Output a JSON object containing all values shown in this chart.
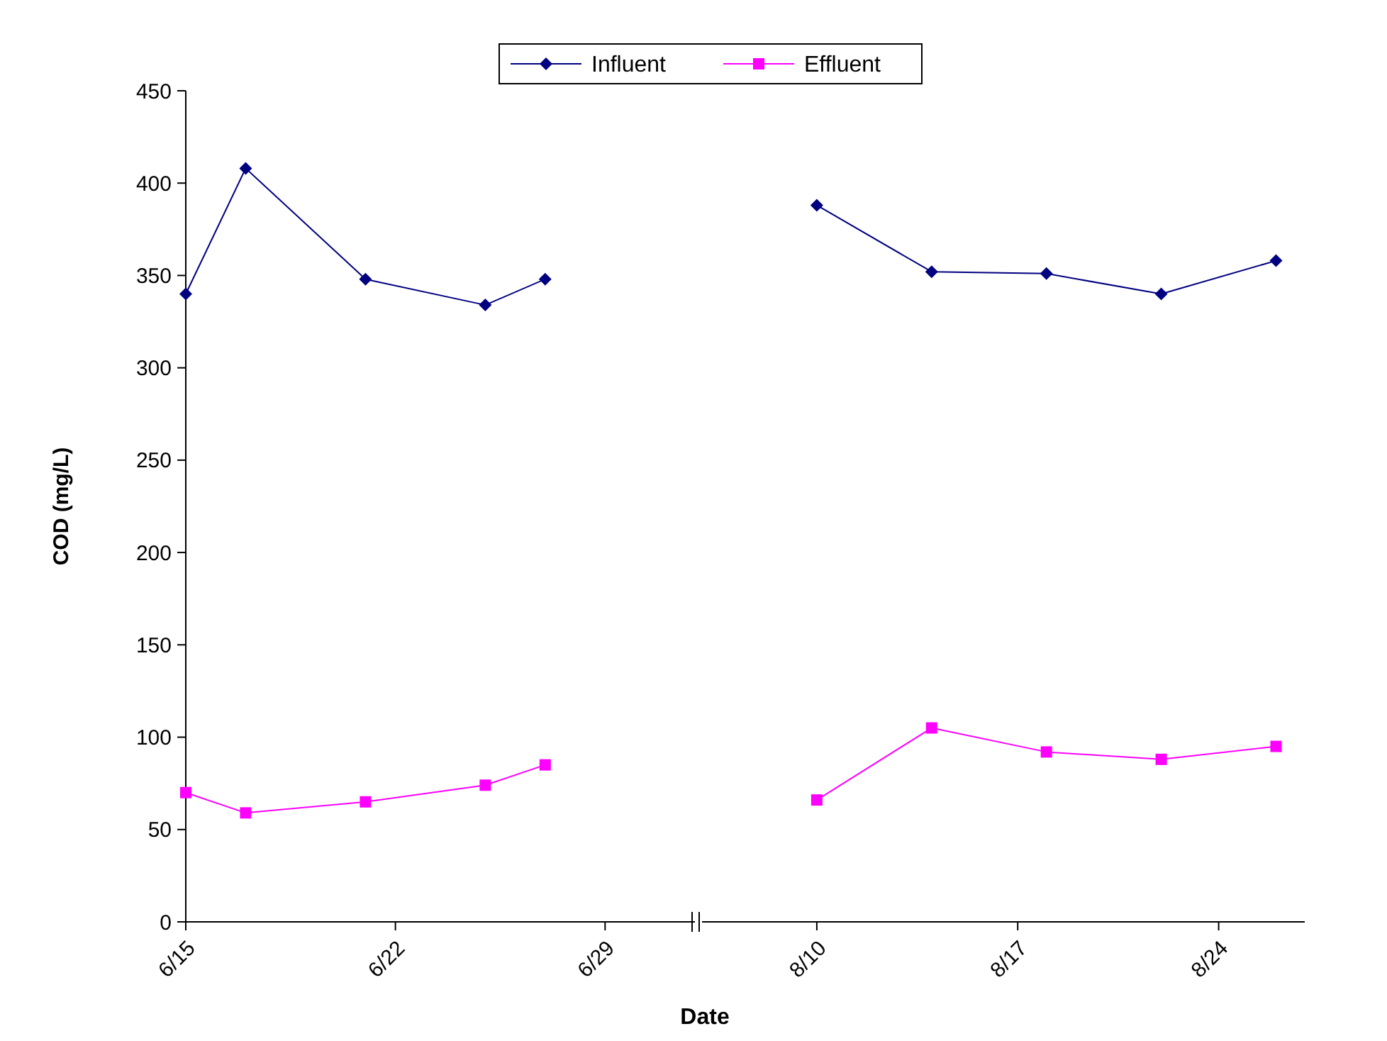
{
  "chart_data": [
    {
      "type": "line",
      "ylabel": "COD (mg/L)",
      "xlabel": "Date",
      "legend": "top",
      "grid": false,
      "xlim": [
        "--06-15",
        "--07-02"
      ],
      "xticks": [
        {
          "value": "--06-15",
          "label": "6/15"
        },
        {
          "value": "--06-22",
          "label": "6/22"
        },
        {
          "value": "--06-29",
          "label": "6/29"
        }
      ],
      "ylim": [
        0,
        450
      ],
      "yticks": [
        0,
        50,
        100,
        150,
        200,
        250,
        300,
        350,
        400,
        450
      ],
      "x": [
        "--06-15",
        "--06-17",
        "--06-21",
        "--06-25",
        "--06-27"
      ],
      "series": [
        {
          "name": "Influent",
          "color": "#000080",
          "marker": "diamond",
          "values": [
            340,
            408,
            348,
            334,
            348
          ]
        },
        {
          "name": "Effluent",
          "color": "#ff00ff",
          "marker": "square",
          "values": [
            70,
            59,
            65,
            74,
            85
          ]
        }
      ]
    },
    {
      "type": "line",
      "tick_labels": "x",
      "grid": false,
      "xlim": [
        "--08-06",
        "--08-27"
      ],
      "xticks": [
        {
          "value": "--08-10",
          "label": "8/10"
        },
        {
          "value": "--08-17",
          "label": "8/17"
        },
        {
          "value": "--08-24",
          "label": "8/24"
        }
      ],
      "ylim": [
        0,
        450
      ],
      "x": [
        "--08-10",
        "--08-14",
        "--08-18",
        "--08-22",
        "--08-26"
      ],
      "series": [
        {
          "color": "#000080",
          "marker": "diamond",
          "values": [
            388,
            352,
            351,
            340,
            358
          ]
        },
        {
          "color": "#ff00ff",
          "marker": "square",
          "values": [
            66,
            105,
            92,
            88,
            95
          ]
        }
      ]
    }
  ]
}
